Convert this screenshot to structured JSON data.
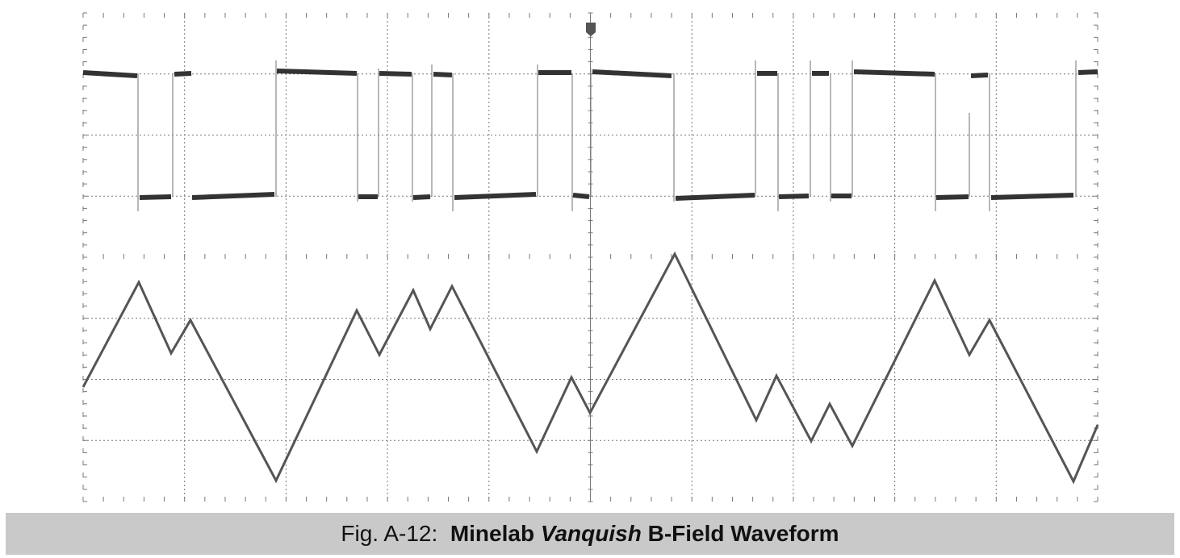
{
  "caption": {
    "prefix": "Fig. A-12:",
    "brand": "Minelab",
    "model": "Vanquish",
    "subject": "B-Field Waveform"
  }
}
